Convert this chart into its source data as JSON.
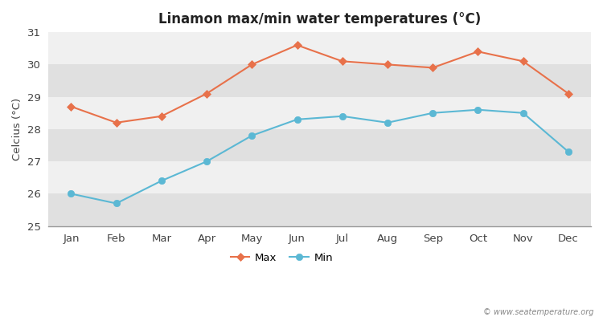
{
  "title": "Linamon max/min water temperatures (°C)",
  "ylabel": "Celcius (°C)",
  "months": [
    "Jan",
    "Feb",
    "Mar",
    "Apr",
    "May",
    "Jun",
    "Jul",
    "Aug",
    "Sep",
    "Oct",
    "Nov",
    "Dec"
  ],
  "max_temps": [
    28.7,
    28.2,
    28.4,
    29.1,
    30.0,
    30.6,
    30.1,
    30.0,
    29.9,
    30.4,
    30.1,
    29.1
  ],
  "min_temps": [
    26.0,
    25.7,
    26.4,
    27.0,
    27.8,
    28.3,
    28.4,
    28.2,
    28.5,
    28.6,
    28.5,
    27.3
  ],
  "max_color": "#E8714A",
  "min_color": "#5BB8D4",
  "bg_color": "#FFFFFF",
  "band_light": "#F0F0F0",
  "band_dark": "#E0E0E0",
  "ylim": [
    25,
    31
  ],
  "yticks": [
    25,
    26,
    27,
    28,
    29,
    30,
    31
  ],
  "watermark": "© www.seatemperature.org",
  "legend_max": "Max",
  "legend_min": "Min"
}
